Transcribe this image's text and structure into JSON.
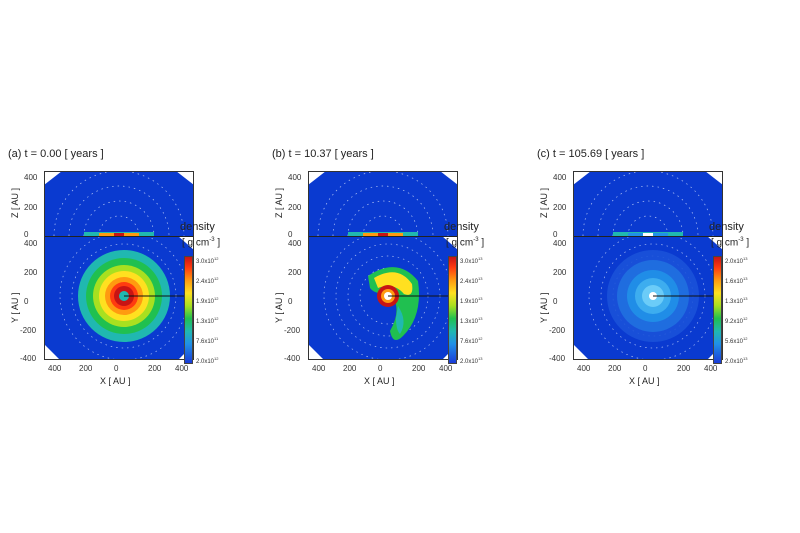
{
  "panels": [
    {
      "title": "(a) t = 0.00 [ years ]",
      "variant": "ring",
      "colorbar_ticks": [
        "3.0x10",
        "2.4x10",
        "1.9x10",
        "1.3x10",
        "7.6x10",
        "2.0x10"
      ],
      "colorbar_exps": [
        "12",
        "12",
        "12",
        "12",
        "11",
        "12"
      ]
    },
    {
      "title": "(b) t = 10.37 [ years ]",
      "variant": "spiral",
      "colorbar_ticks": [
        "3.0x10",
        "2.4x10",
        "1.9x10",
        "1.3x10",
        "7.6x10",
        "2.0x10"
      ],
      "colorbar_exps": [
        "13",
        "13",
        "13",
        "13",
        "12",
        "13"
      ]
    },
    {
      "title": "(c) t = 105.69 [ years ]",
      "variant": "diffuse",
      "colorbar_ticks": [
        "2.0x10",
        "1.6x10",
        "1.3x10",
        "9.2x10",
        "5.6x10",
        "2.0x10"
      ],
      "colorbar_exps": [
        "13",
        "13",
        "13",
        "12",
        "12",
        "13"
      ]
    }
  ],
  "labels": {
    "z_axis": "Z [ AU ]",
    "y_axis": "Y [ AU ]",
    "x_axis": "X [ AU ]",
    "colorbar_title": "density",
    "colorbar_unit": "[ g cm",
    "colorbar_unit_exp": "-3",
    "colorbar_unit_close": "]"
  },
  "ticks": {
    "z": [
      "400",
      "200",
      "0"
    ],
    "y": [
      "400",
      "200",
      "0",
      "-200",
      "-400"
    ],
    "x": [
      "400",
      "200",
      "0",
      "200",
      "400"
    ]
  },
  "colors": {
    "background": "#0a3ad0",
    "high": "#c81414",
    "mid": "#ffe020",
    "low": "#1a3cd8"
  }
}
